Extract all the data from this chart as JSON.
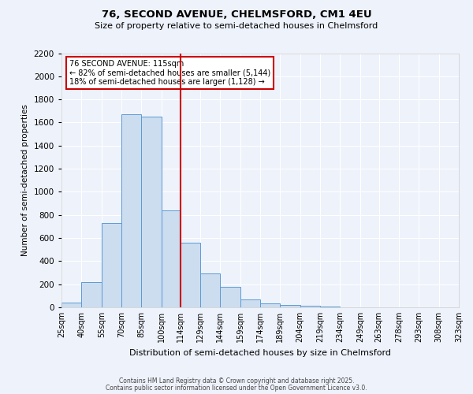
{
  "title": "76, SECOND AVENUE, CHELMSFORD, CM1 4EU",
  "subtitle": "Size of property relative to semi-detached houses in Chelmsford",
  "xlabel": "Distribution of semi-detached houses by size in Chelmsford",
  "ylabel": "Number of semi-detached properties",
  "bin_edges": [
    25,
    40,
    55,
    70,
    85,
    100,
    114,
    129,
    144,
    159,
    174,
    189,
    204,
    219,
    234,
    249,
    263,
    278,
    293,
    308,
    323
  ],
  "bin_labels": [
    "25sqm",
    "40sqm",
    "55sqm",
    "70sqm",
    "85sqm",
    "100sqm",
    "114sqm",
    "129sqm",
    "144sqm",
    "159sqm",
    "174sqm",
    "189sqm",
    "204sqm",
    "219sqm",
    "234sqm",
    "249sqm",
    "263sqm",
    "278sqm",
    "293sqm",
    "308sqm",
    "323sqm"
  ],
  "bar_heights": [
    40,
    220,
    730,
    1670,
    1650,
    840,
    560,
    295,
    180,
    70,
    35,
    20,
    15,
    10,
    0,
    0,
    0,
    0,
    0,
    0
  ],
  "bar_color": "#ccddf0",
  "bar_edge_color": "#5b9bd5",
  "vline_x": 114,
  "vline_color": "#cc0000",
  "ylim": [
    0,
    2200
  ],
  "yticks": [
    0,
    200,
    400,
    600,
    800,
    1000,
    1200,
    1400,
    1600,
    1800,
    2000,
    2200
  ],
  "annotation_title": "76 SECOND AVENUE: 115sqm",
  "annotation_line1": "← 82% of semi-detached houses are smaller (5,144)",
  "annotation_line2": "18% of semi-detached houses are larger (1,128) →",
  "annotation_box_color": "#ffffff",
  "annotation_box_edge_color": "#cc0000",
  "bg_color": "#eef2fb",
  "grid_color": "#ffffff",
  "footer_line1": "Contains HM Land Registry data © Crown copyright and database right 2025.",
  "footer_line2": "Contains public sector information licensed under the Open Government Licence v3.0."
}
